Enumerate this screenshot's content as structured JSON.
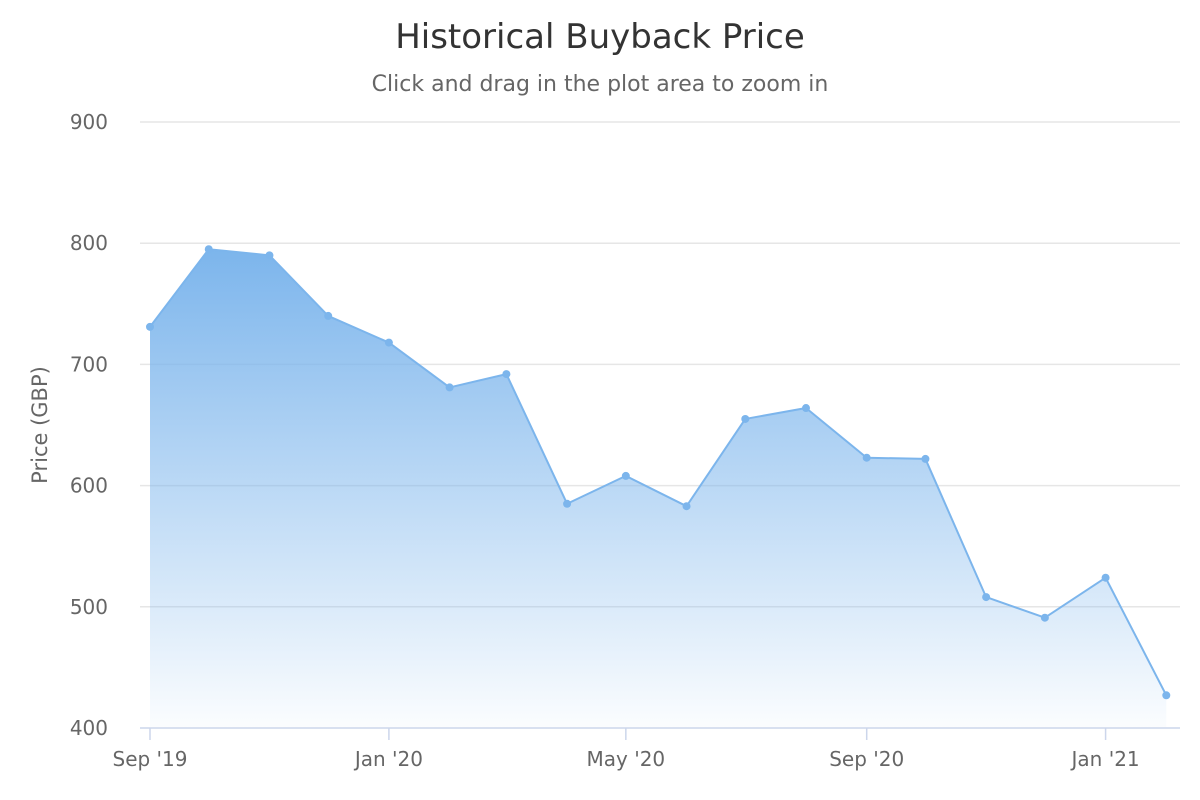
{
  "chart_data": {
    "type": "area",
    "title": "Historical Buyback Price",
    "subtitle": "Click and drag in the plot area to zoom in",
    "xlabel": "",
    "ylabel": "Price (GBP)",
    "ylim": [
      400,
      900
    ],
    "yticks": [
      400,
      500,
      600,
      700,
      800,
      900
    ],
    "xticks": [
      {
        "date": "2019-09-01",
        "label": "Sep '19"
      },
      {
        "date": "2020-01-01",
        "label": "Jan '20"
      },
      {
        "date": "2020-05-01",
        "label": "May '20"
      },
      {
        "date": "2020-09-01",
        "label": "Sep '20"
      },
      {
        "date": "2021-01-01",
        "label": "Jan '21"
      }
    ],
    "xlim": [
      "2019-09-01",
      "2021-02-08"
    ],
    "grid": true,
    "legend": "none",
    "color": "#7cb5ec",
    "x": [
      "2019-09-01",
      "2019-10-01",
      "2019-11-01",
      "2019-12-01",
      "2020-01-01",
      "2020-02-01",
      "2020-03-01",
      "2020-04-01",
      "2020-05-01",
      "2020-06-01",
      "2020-07-01",
      "2020-08-01",
      "2020-09-01",
      "2020-10-01",
      "2020-11-01",
      "2020-12-01",
      "2021-01-01",
      "2021-02-01"
    ],
    "values": [
      731,
      795,
      790,
      740,
      718,
      681,
      692,
      585,
      608,
      583,
      655,
      664,
      623,
      622,
      508,
      491,
      524,
      427
    ]
  }
}
